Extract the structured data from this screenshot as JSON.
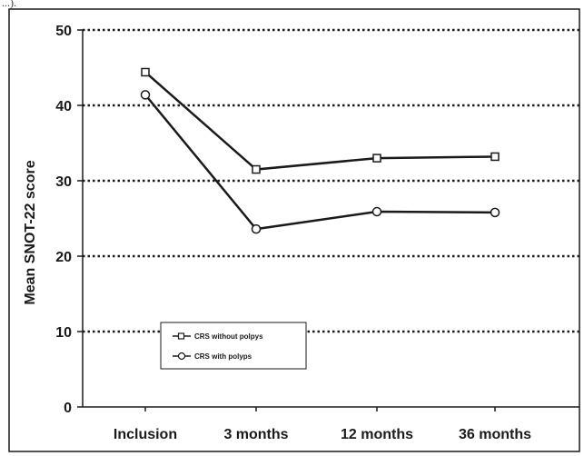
{
  "caption_fragment": "...).",
  "chart_data": {
    "type": "line",
    "title": "",
    "xlabel": "",
    "ylabel": "Mean SNOT-22 score",
    "categories": [
      "Inclusion",
      "3 months",
      "12 months",
      "36 months"
    ],
    "ylim": [
      0,
      50
    ],
    "yticks": [
      0,
      10,
      20,
      30,
      40,
      50
    ],
    "grid": "horizontal dotted",
    "legend_position": "lower-left",
    "series": [
      {
        "name": "CRS without polpys",
        "marker": "square",
        "color": "#1a1a1a",
        "values": [
          44.4,
          31.5,
          33.0,
          33.2
        ]
      },
      {
        "name": "CRS with polyps",
        "marker": "circle",
        "color": "#1a1a1a",
        "values": [
          41.4,
          23.6,
          25.9,
          25.8
        ]
      }
    ]
  }
}
